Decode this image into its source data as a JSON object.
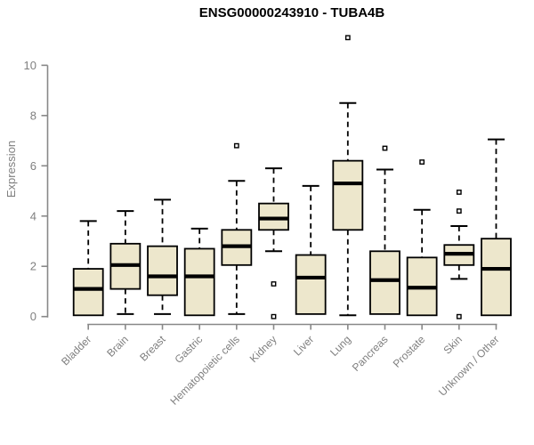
{
  "chart_data": {
    "type": "boxplot",
    "title": "ENSG00000243910 - TUBA4B",
    "ylabel": "Expression",
    "xlabel": "",
    "ylim": [
      0,
      10
    ],
    "yticks": [
      0,
      2,
      4,
      6,
      8,
      10
    ],
    "grid": false,
    "legend": null,
    "outlier_marker": "open-square",
    "categories": [
      "Bladder",
      "Brain",
      "Breast",
      "Gastric",
      "Hematopoietic cells",
      "Kidney",
      "Liver",
      "Lung",
      "Pancreas",
      "Prostate",
      "Skin",
      "Unknown / Other"
    ],
    "boxes": [
      {
        "category": "Bladder",
        "whisker_low": 0.05,
        "q1": 0.05,
        "median": 1.1,
        "q3": 1.9,
        "whisker_high": 3.8,
        "outliers": []
      },
      {
        "category": "Brain",
        "whisker_low": 0.1,
        "q1": 1.1,
        "median": 2.05,
        "q3": 2.9,
        "whisker_high": 4.2,
        "outliers": []
      },
      {
        "category": "Breast",
        "whisker_low": 0.1,
        "q1": 0.85,
        "median": 1.6,
        "q3": 2.8,
        "whisker_high": 4.65,
        "outliers": []
      },
      {
        "category": "Gastric",
        "whisker_low": 0.05,
        "q1": 0.05,
        "median": 1.6,
        "q3": 2.7,
        "whisker_high": 3.5,
        "outliers": []
      },
      {
        "category": "Hematopoietic cells",
        "whisker_low": 0.1,
        "q1": 2.05,
        "median": 2.8,
        "q3": 3.45,
        "whisker_high": 5.4,
        "outliers": [
          6.8
        ]
      },
      {
        "category": "Kidney",
        "whisker_low": 2.6,
        "q1": 3.45,
        "median": 3.9,
        "q3": 4.5,
        "whisker_high": 5.9,
        "outliers": [
          1.3,
          0.0
        ]
      },
      {
        "category": "Liver",
        "whisker_low": 0.1,
        "q1": 0.1,
        "median": 1.55,
        "q3": 2.45,
        "whisker_high": 5.2,
        "outliers": []
      },
      {
        "category": "Lung",
        "whisker_low": 0.05,
        "q1": 3.45,
        "median": 5.3,
        "q3": 6.2,
        "whisker_high": 8.5,
        "outliers": [
          11.1
        ]
      },
      {
        "category": "Pancreas",
        "whisker_low": 0.1,
        "q1": 0.1,
        "median": 1.45,
        "q3": 2.6,
        "whisker_high": 5.85,
        "outliers": [
          6.7
        ]
      },
      {
        "category": "Prostate",
        "whisker_low": 0.05,
        "q1": 0.05,
        "median": 1.15,
        "q3": 2.35,
        "whisker_high": 4.25,
        "outliers": [
          6.15
        ]
      },
      {
        "category": "Skin",
        "whisker_low": 1.5,
        "q1": 2.05,
        "median": 2.5,
        "q3": 2.85,
        "whisker_high": 3.6,
        "outliers": [
          4.95,
          4.2,
          0.0
        ]
      },
      {
        "category": "Unknown / Other",
        "whisker_low": 0.05,
        "q1": 0.05,
        "median": 1.9,
        "q3": 3.1,
        "whisker_high": 7.05,
        "outliers": []
      }
    ],
    "colors": {
      "box_fill": "#EDE7CC",
      "box_stroke": "#000000",
      "median": "#000000",
      "axis": "#888888",
      "tick_label": "#7F7F7F",
      "title": "#000000"
    }
  }
}
